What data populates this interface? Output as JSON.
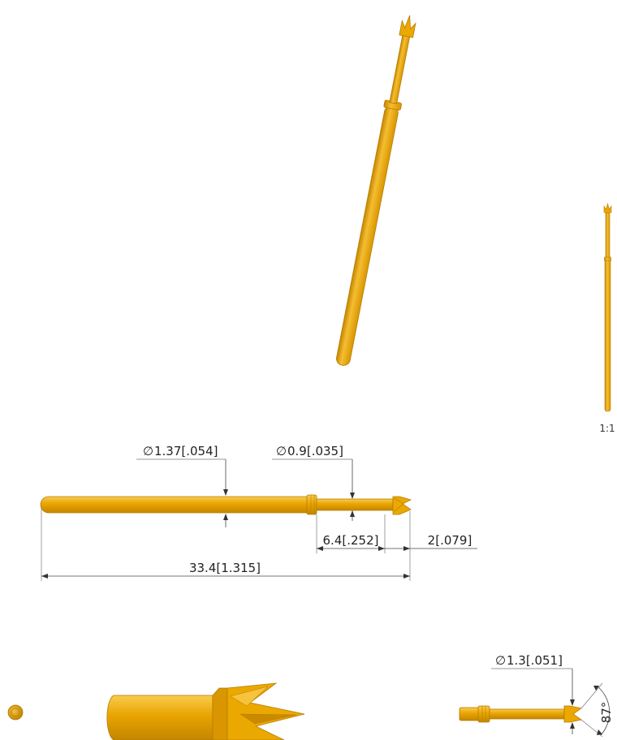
{
  "drawing": {
    "scale_label": "1:1",
    "dimensions": {
      "shaft_diameter": "1.37[.054]",
      "plunger_diameter": "0.9[.035]",
      "plunger_length": "6.4[.252]",
      "tip_length": "2[.079]",
      "overall_length": "33.4[1.315]",
      "tip_diameter": "1.3[.051]",
      "tip_angle": "87°"
    },
    "diameter_symbol": "∅",
    "colors": {
      "gold": "#E9A400",
      "gold_light": "#F7C23C",
      "gold_dark": "#C98A00",
      "outline": "#B77C00"
    }
  }
}
